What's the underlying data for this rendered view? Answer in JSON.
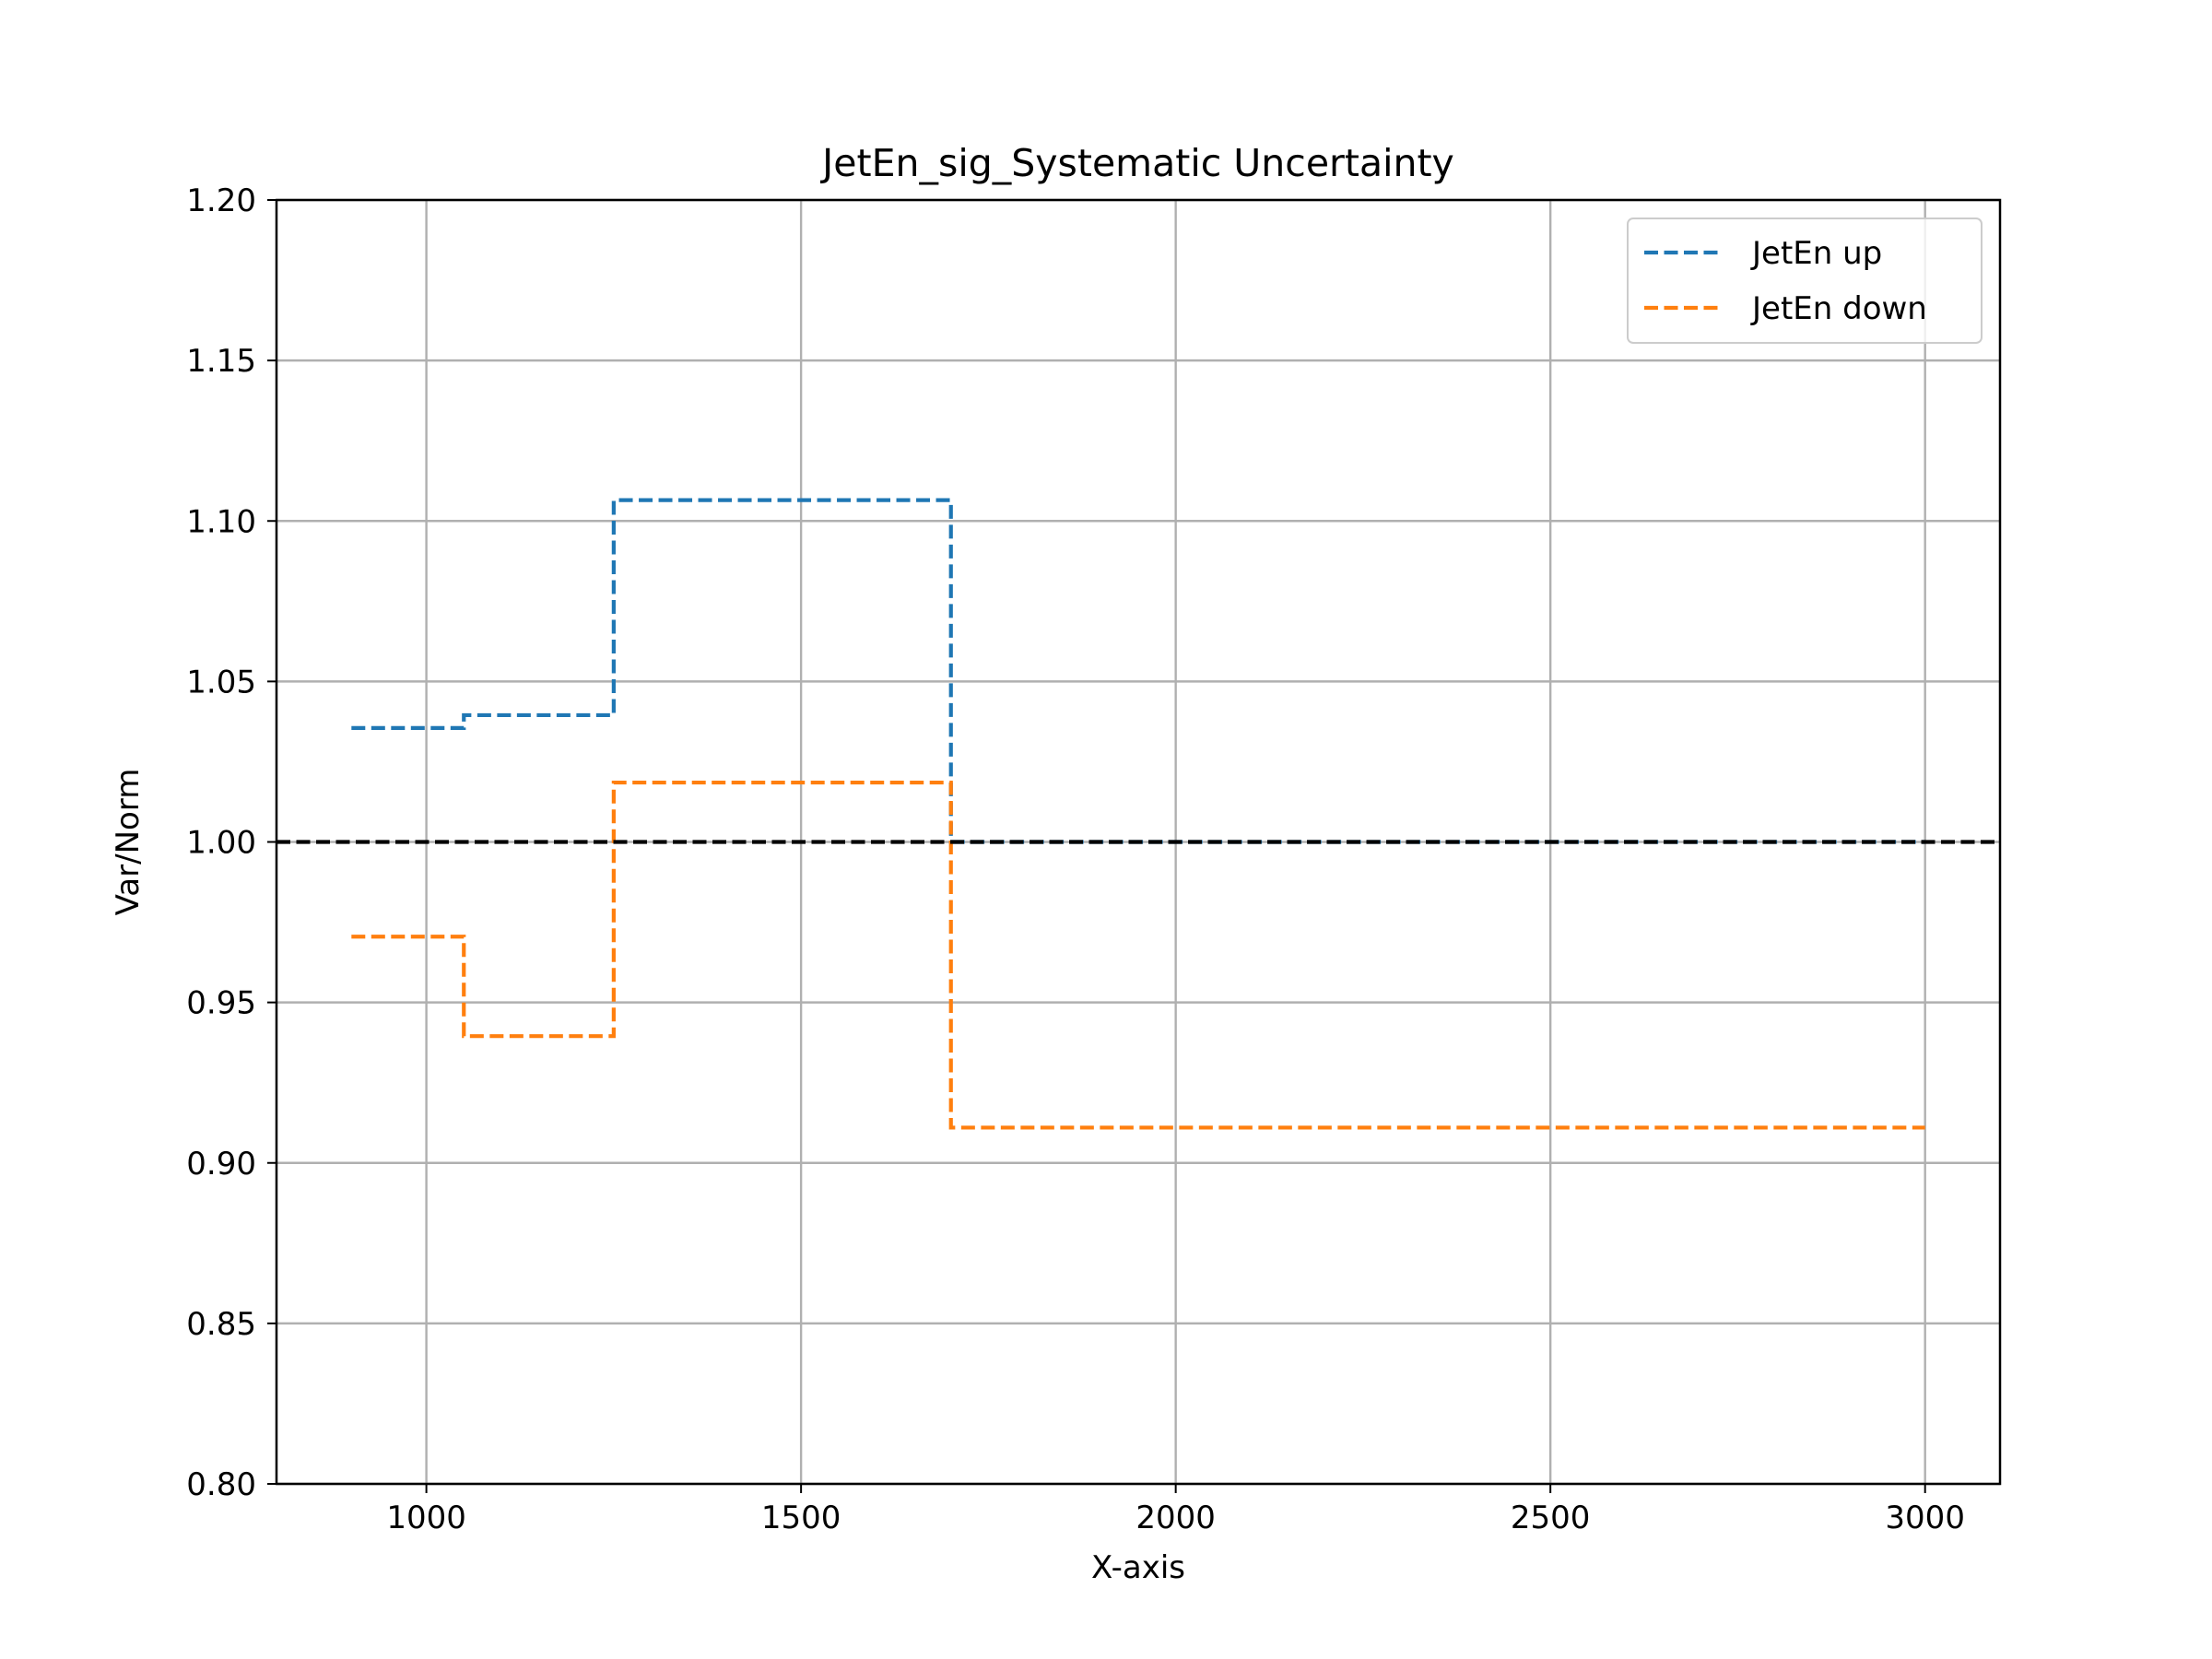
{
  "chart_data": {
    "type": "line",
    "step": true,
    "title": "JetEn_sig_Systematic Uncertainty",
    "xlabel": "X-axis",
    "ylabel": "Var/Norm",
    "xlim": [
      800,
      3100
    ],
    "ylim": [
      0.8,
      1.2
    ],
    "xticks": [
      1000,
      1500,
      2000,
      2500,
      3000
    ],
    "xtick_labels": [
      "1000",
      "1500",
      "2000",
      "2500",
      "3000"
    ],
    "yticks": [
      0.8,
      0.85,
      0.9,
      0.95,
      1.0,
      1.05,
      1.1,
      1.15,
      1.2
    ],
    "ytick_labels": [
      "0.80",
      "0.85",
      "0.90",
      "0.95",
      "1.00",
      "1.05",
      "1.10",
      "1.15",
      "1.20"
    ],
    "grid": true,
    "legend_position": "top-right",
    "bin_edges": [
      900,
      1050,
      1250,
      1700,
      3000
    ],
    "series": [
      {
        "name": "JetEn up",
        "color": "#1f77b4",
        "linestyle": "dashed",
        "values": [
          1.0355,
          1.0395,
          1.1065,
          1.0
        ]
      },
      {
        "name": "JetEn down",
        "color": "#ff7f0e",
        "linestyle": "dashed",
        "values": [
          0.9705,
          0.9395,
          1.0185,
          0.911
        ]
      }
    ],
    "reference_line": {
      "y": 1.0,
      "color": "#000000",
      "linestyle": "dashed"
    }
  }
}
